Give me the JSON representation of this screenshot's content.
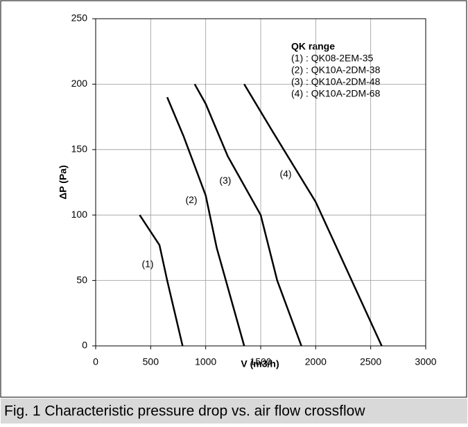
{
  "chart_data": {
    "type": "line",
    "caption": "Fig. 1 Characteristic pressure drop vs. air flow crossflow",
    "xlabel": "V (m3/h)",
    "ylabel": "ΔP (Pa)",
    "legend_title": "QK range",
    "xlim": [
      0,
      3000
    ],
    "xticks": [
      0,
      500,
      1000,
      1500,
      2000,
      2500,
      3000
    ],
    "ylim": [
      0,
      250
    ],
    "yticks": [
      0,
      50,
      100,
      150,
      200,
      250
    ],
    "grid": true,
    "legend": "upper right",
    "series": [
      {
        "name": "(1) : QK08-2EM-35",
        "label": "(1)",
        "color": "#000000",
        "x": [
          400,
          580,
          650,
          720,
          790
        ],
        "values": [
          100,
          77,
          50,
          25,
          0
        ]
      },
      {
        "name": "(2) : QK10A-2DM-38",
        "label": "(2)",
        "color": "#000000",
        "x": [
          650,
          800,
          1000,
          1100,
          1250,
          1350
        ],
        "values": [
          190,
          160,
          115,
          75,
          30,
          0
        ]
      },
      {
        "name": "(3) : QK10A-2DM-48",
        "label": "(3)",
        "color": "#000000",
        "x": [
          900,
          1000,
          1200,
          1500,
          1650,
          1870
        ],
        "values": [
          200,
          185,
          145,
          100,
          50,
          0
        ]
      },
      {
        "name": "(4) : QK10A-2DM-68",
        "label": "(4)",
        "color": "#000000",
        "x": [
          1350,
          1600,
          2000,
          2300,
          2600
        ],
        "values": [
          200,
          165,
          110,
          55,
          0
        ]
      }
    ]
  }
}
